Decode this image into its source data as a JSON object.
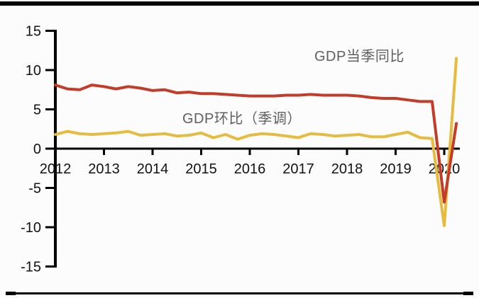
{
  "chart_data": {
    "type": "line",
    "title": "",
    "xlabel": "",
    "ylabel": "",
    "x_years": [
      "2012",
      "2013",
      "2014",
      "2015",
      "2016",
      "2017",
      "2018",
      "2019",
      "2020"
    ],
    "x_frequency": "quarterly",
    "y_ticks": [
      15,
      10,
      5,
      0,
      -5,
      -10,
      -15
    ],
    "ylim": [
      -15,
      15
    ],
    "xlim_years": [
      2012,
      2020.5
    ],
    "grid": false,
    "legend_position": "inline-annotations-near-lines",
    "series": [
      {
        "name": "GDP当季同比",
        "color": "#C43B28",
        "values": [
          8.1,
          7.6,
          7.5,
          8.1,
          7.9,
          7.6,
          7.9,
          7.7,
          7.4,
          7.5,
          7.1,
          7.2,
          7.0,
          7.0,
          6.9,
          6.8,
          6.7,
          6.7,
          6.7,
          6.8,
          6.8,
          6.9,
          6.8,
          6.8,
          6.8,
          6.7,
          6.5,
          6.4,
          6.4,
          6.2,
          6.0,
          6.0,
          -6.8,
          3.2
        ]
      },
      {
        "name": "GDP环比（季调）",
        "color": "#E6BB3E",
        "values": [
          1.8,
          2.2,
          1.9,
          1.8,
          1.9,
          2.0,
          2.2,
          1.7,
          1.8,
          1.9,
          1.6,
          1.7,
          2.0,
          1.4,
          1.8,
          1.2,
          1.7,
          1.9,
          1.8,
          1.6,
          1.4,
          1.9,
          1.8,
          1.6,
          1.7,
          1.8,
          1.5,
          1.5,
          1.8,
          2.1,
          1.4,
          1.3,
          -9.8,
          11.5
        ]
      }
    ]
  },
  "axis": {
    "line_color": "#000000",
    "tick_label_color": "#121212"
  }
}
